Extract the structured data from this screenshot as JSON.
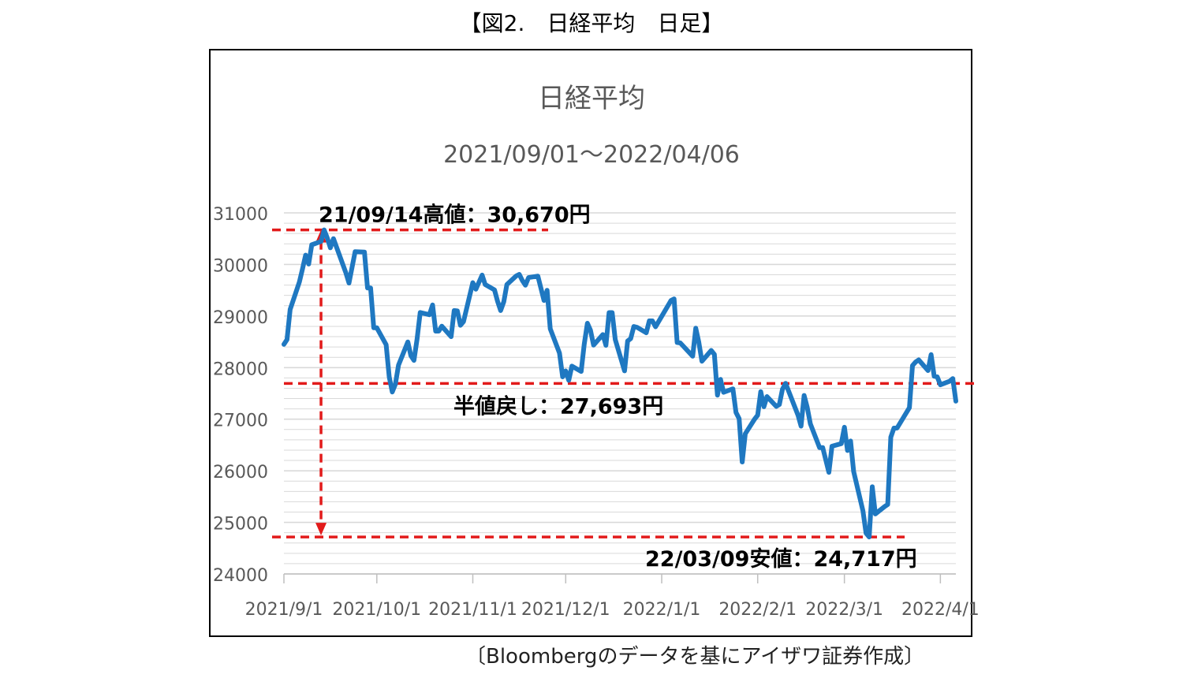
{
  "figure_caption": "【図2.　日経平均　日足】",
  "source_note": "〔Bloombergのデータを基にアイザワ証券作成〕",
  "colors": {
    "series": "#1f78c1",
    "annotation": "#e21b1b",
    "grid": "#d9d9d9",
    "axis_text": "#595959"
  },
  "chart_data": {
    "type": "line",
    "title": "日経平均",
    "subtitle": "2021/09/01～2022/04/06",
    "xlabel": "",
    "ylabel": "",
    "ylim": [
      24000,
      31000
    ],
    "yticks": [
      24000,
      25000,
      26000,
      27000,
      28000,
      29000,
      30000,
      31000
    ],
    "ytick_labels": [
      "24000",
      "25000",
      "26000",
      "27000",
      "28000",
      "29000",
      "30000",
      "31000"
    ],
    "xlim": [
      "2021-09-01",
      "2022-04-06"
    ],
    "xticks": [
      "2021-09-01",
      "2021-10-01",
      "2021-11-01",
      "2021-12-01",
      "2022-01-01",
      "2022-02-01",
      "2022-03-01",
      "2022-04-01"
    ],
    "xtick_labels": [
      "2021/9/1",
      "2021/10/1",
      "2021/11/1",
      "2021/12/1",
      "2022/1/1",
      "2022/2/1",
      "2022/3/1",
      "2022/4/1"
    ],
    "grid": true,
    "legend": "none",
    "series": [
      {
        "x": [
          "2021-09-01",
          "2021-09-02",
          "2021-09-03",
          "2021-09-06",
          "2021-09-07",
          "2021-09-08",
          "2021-09-09",
          "2021-09-10",
          "2021-09-13",
          "2021-09-14",
          "2021-09-15",
          "2021-09-16",
          "2021-09-17",
          "2021-09-21",
          "2021-09-22",
          "2021-09-24",
          "2021-09-27",
          "2021-09-28",
          "2021-09-29",
          "2021-09-30",
          "2021-10-01",
          "2021-10-04",
          "2021-10-05",
          "2021-10-06",
          "2021-10-07",
          "2021-10-08",
          "2021-10-11",
          "2021-10-12",
          "2021-10-13",
          "2021-10-14",
          "2021-10-15",
          "2021-10-18",
          "2021-10-19",
          "2021-10-20",
          "2021-10-21",
          "2021-10-22",
          "2021-10-25",
          "2021-10-26",
          "2021-10-27",
          "2021-10-28",
          "2021-10-29",
          "2021-11-01",
          "2021-11-02",
          "2021-11-04",
          "2021-11-05",
          "2021-11-08",
          "2021-11-09",
          "2021-11-10",
          "2021-11-11",
          "2021-11-12",
          "2021-11-15",
          "2021-11-16",
          "2021-11-17",
          "2021-11-18",
          "2021-11-19",
          "2021-11-22",
          "2021-11-24",
          "2021-11-25",
          "2021-11-26",
          "2021-11-29",
          "2021-11-30",
          "2021-12-01",
          "2021-12-02",
          "2021-12-03",
          "2021-12-06",
          "2021-12-07",
          "2021-12-08",
          "2021-12-09",
          "2021-12-10",
          "2021-12-13",
          "2021-12-14",
          "2021-12-15",
          "2021-12-16",
          "2021-12-17",
          "2021-12-20",
          "2021-12-21",
          "2021-12-22",
          "2021-12-23",
          "2021-12-24",
          "2021-12-27",
          "2021-12-28",
          "2021-12-29",
          "2021-12-30",
          "2022-01-04",
          "2022-01-05",
          "2022-01-06",
          "2022-01-07",
          "2022-01-11",
          "2022-01-12",
          "2022-01-13",
          "2022-01-14",
          "2022-01-17",
          "2022-01-18",
          "2022-01-19",
          "2022-01-20",
          "2022-01-21",
          "2022-01-24",
          "2022-01-25",
          "2022-01-26",
          "2022-01-27",
          "2022-01-28",
          "2022-01-31",
          "2022-02-01",
          "2022-02-02",
          "2022-02-03",
          "2022-02-04",
          "2022-02-07",
          "2022-02-08",
          "2022-02-09",
          "2022-02-10",
          "2022-02-14",
          "2022-02-15",
          "2022-02-16",
          "2022-02-17",
          "2022-02-18",
          "2022-02-21",
          "2022-02-22",
          "2022-02-24",
          "2022-02-25",
          "2022-02-28",
          "2022-03-01",
          "2022-03-02",
          "2022-03-03",
          "2022-03-04",
          "2022-03-07",
          "2022-03-08",
          "2022-03-09",
          "2022-03-10",
          "2022-03-11",
          "2022-03-14",
          "2022-03-15",
          "2022-03-16",
          "2022-03-17",
          "2022-03-18",
          "2022-03-22",
          "2022-03-23",
          "2022-03-24",
          "2022-03-25",
          "2022-03-28",
          "2022-03-29",
          "2022-03-30",
          "2022-03-31",
          "2022-04-01",
          "2022-04-04",
          "2022-04-05",
          "2022-04-06"
        ],
        "y": [
          28451,
          28543,
          29128,
          29659,
          29916,
          30181,
          30008,
          30381,
          30447,
          30670,
          30511,
          30323,
          30500,
          29840,
          29639,
          30248,
          30240,
          29544,
          29545,
          28771,
          28771,
          28444,
          27822,
          27528,
          27678,
          28048,
          28498,
          28230,
          28140,
          28550,
          29068,
          29025,
          29215,
          28708,
          28708,
          28804,
          28600,
          29106,
          29098,
          28820,
          28892,
          29647,
          29520,
          29794,
          29611,
          29507,
          29285,
          29106,
          29277,
          29610,
          29777,
          29808,
          29688,
          29598,
          29745,
          29774,
          29302,
          29499,
          28751,
          28283,
          27821,
          27935,
          27753,
          28029,
          27927,
          28455,
          28860,
          28725,
          28437,
          28640,
          28432,
          29066,
          29066,
          28545,
          27937,
          28517,
          28562,
          28798,
          28782,
          28676,
          28906,
          28906,
          28791,
          29301,
          29332,
          28487,
          28478,
          28222,
          28765,
          28489,
          28124,
          28333,
          28257,
          27467,
          27772,
          27522,
          27588,
          27131,
          27011,
          26170,
          26717,
          27001,
          27078,
          27533,
          27241,
          27439,
          27248,
          27284,
          27579,
          27696,
          27079,
          26865,
          27460,
          27232,
          26910,
          26449,
          26449,
          25970,
          26476,
          26526,
          26844,
          26393,
          26577,
          25985,
          25221,
          24791,
          24717,
          25690,
          25163,
          25307,
          25346,
          26652,
          26827,
          26827,
          27224,
          28040,
          28110,
          28149,
          27943,
          28252,
          27833,
          27821,
          27666,
          27736,
          27787,
          27350
        ]
      }
    ],
    "annotations": [
      {
        "text": "21/09/14高値：30,670円",
        "date": "2021-09-14",
        "value": 30670
      },
      {
        "text": "半値戻し：27,693円",
        "value": 27693
      },
      {
        "text": "22/03/09安値：24,717円",
        "date": "2022-03-09",
        "value": 24717
      }
    ]
  }
}
